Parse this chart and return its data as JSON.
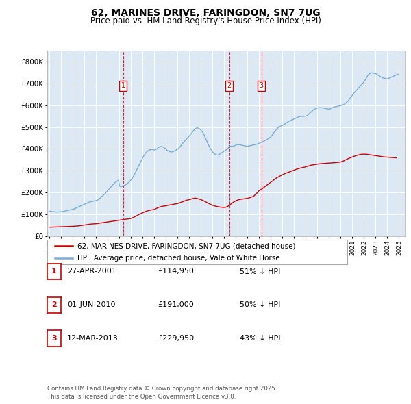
{
  "title": "62, MARINES DRIVE, FARINGDON, SN7 7UG",
  "subtitle": "Price paid vs. HM Land Registry's House Price Index (HPI)",
  "ylim": [
    0,
    850000
  ],
  "yticks": [
    0,
    100000,
    200000,
    300000,
    400000,
    500000,
    600000,
    700000,
    800000
  ],
  "ytick_labels": [
    "£0",
    "£100K",
    "£200K",
    "£300K",
    "£400K",
    "£500K",
    "£600K",
    "£700K",
    "£800K"
  ],
  "bg_color": "#dce9f5",
  "grid_color": "#ffffff",
  "red_line_color": "#cc0000",
  "blue_line_color": "#7aadd4",
  "sale_markers": [
    {
      "date": 2001.32,
      "price": 114950,
      "label": "1"
    },
    {
      "date": 2010.42,
      "price": 191000,
      "label": "2"
    },
    {
      "date": 2013.19,
      "price": 229950,
      "label": "3"
    }
  ],
  "legend_line1": "62, MARINES DRIVE, FARINGDON, SN7 7UG (detached house)",
  "legend_line2": "HPI: Average price, detached house, Vale of White Horse",
  "table_rows": [
    {
      "num": "1",
      "date": "27-APR-2001",
      "price": "£114,950",
      "note": "51% ↓ HPI"
    },
    {
      "num": "2",
      "date": "01-JUN-2010",
      "price": "£191,000",
      "note": "50% ↓ HPI"
    },
    {
      "num": "3",
      "date": "12-MAR-2013",
      "price": "£229,950",
      "note": "43% ↓ HPI"
    }
  ],
  "footer": "Contains HM Land Registry data © Crown copyright and database right 2025.\nThis data is licensed under the Open Government Licence v3.0.",
  "hpi_data": {
    "years": [
      1995.0,
      1995.08,
      1995.17,
      1995.25,
      1995.33,
      1995.42,
      1995.5,
      1995.58,
      1995.67,
      1995.75,
      1995.83,
      1995.92,
      1996.0,
      1996.08,
      1996.17,
      1996.25,
      1996.33,
      1996.42,
      1996.5,
      1996.58,
      1996.67,
      1996.75,
      1996.83,
      1996.92,
      1997.0,
      1997.08,
      1997.17,
      1997.25,
      1997.33,
      1997.42,
      1997.5,
      1997.58,
      1997.67,
      1997.75,
      1997.83,
      1997.92,
      1998.0,
      1998.08,
      1998.17,
      1998.25,
      1998.33,
      1998.42,
      1998.5,
      1998.58,
      1998.67,
      1998.75,
      1998.83,
      1998.92,
      1999.0,
      1999.08,
      1999.17,
      1999.25,
      1999.33,
      1999.42,
      1999.5,
      1999.58,
      1999.67,
      1999.75,
      1999.83,
      1999.92,
      2000.0,
      2000.08,
      2000.17,
      2000.25,
      2000.33,
      2000.42,
      2000.5,
      2000.58,
      2000.67,
      2000.75,
      2000.83,
      2000.92,
      2001.0,
      2001.08,
      2001.17,
      2001.25,
      2001.33,
      2001.42,
      2001.5,
      2001.58,
      2001.67,
      2001.75,
      2001.83,
      2001.92,
      2002.0,
      2002.08,
      2002.17,
      2002.25,
      2002.33,
      2002.42,
      2002.5,
      2002.58,
      2002.67,
      2002.75,
      2002.83,
      2002.92,
      2003.0,
      2003.08,
      2003.17,
      2003.25,
      2003.33,
      2003.42,
      2003.5,
      2003.58,
      2003.67,
      2003.75,
      2003.83,
      2003.92,
      2004.0,
      2004.08,
      2004.17,
      2004.25,
      2004.33,
      2004.42,
      2004.5,
      2004.58,
      2004.67,
      2004.75,
      2004.83,
      2004.92,
      2005.0,
      2005.08,
      2005.17,
      2005.25,
      2005.33,
      2005.42,
      2005.5,
      2005.58,
      2005.67,
      2005.75,
      2005.83,
      2005.92,
      2006.0,
      2006.08,
      2006.17,
      2006.25,
      2006.33,
      2006.42,
      2006.5,
      2006.58,
      2006.67,
      2006.75,
      2006.83,
      2006.92,
      2007.0,
      2007.08,
      2007.17,
      2007.25,
      2007.33,
      2007.42,
      2007.5,
      2007.58,
      2007.67,
      2007.75,
      2007.83,
      2007.92,
      2008.0,
      2008.08,
      2008.17,
      2008.25,
      2008.33,
      2008.42,
      2008.5,
      2008.58,
      2008.67,
      2008.75,
      2008.83,
      2008.92,
      2009.0,
      2009.08,
      2009.17,
      2009.25,
      2009.33,
      2009.42,
      2009.5,
      2009.58,
      2009.67,
      2009.75,
      2009.83,
      2009.92,
      2010.0,
      2010.08,
      2010.17,
      2010.25,
      2010.33,
      2010.42,
      2010.5,
      2010.58,
      2010.67,
      2010.75,
      2010.83,
      2010.92,
      2011.0,
      2011.08,
      2011.17,
      2011.25,
      2011.33,
      2011.42,
      2011.5,
      2011.58,
      2011.67,
      2011.75,
      2011.83,
      2011.92,
      2012.0,
      2012.08,
      2012.17,
      2012.25,
      2012.33,
      2012.42,
      2012.5,
      2012.58,
      2012.67,
      2012.75,
      2012.83,
      2012.92,
      2013.0,
      2013.08,
      2013.17,
      2013.25,
      2013.33,
      2013.42,
      2013.5,
      2013.58,
      2013.67,
      2013.75,
      2013.83,
      2013.92,
      2014.0,
      2014.08,
      2014.17,
      2014.25,
      2014.33,
      2014.42,
      2014.5,
      2014.58,
      2014.67,
      2014.75,
      2014.83,
      2014.92,
      2015.0,
      2015.08,
      2015.17,
      2015.25,
      2015.33,
      2015.42,
      2015.5,
      2015.58,
      2015.67,
      2015.75,
      2015.83,
      2015.92,
      2016.0,
      2016.08,
      2016.17,
      2016.25,
      2016.33,
      2016.42,
      2016.5,
      2016.58,
      2016.67,
      2016.75,
      2016.83,
      2016.92,
      2017.0,
      2017.08,
      2017.17,
      2017.25,
      2017.33,
      2017.42,
      2017.5,
      2017.58,
      2017.67,
      2017.75,
      2017.83,
      2017.92,
      2018.0,
      2018.08,
      2018.17,
      2018.25,
      2018.33,
      2018.42,
      2018.5,
      2018.58,
      2018.67,
      2018.75,
      2018.83,
      2018.92,
      2019.0,
      2019.08,
      2019.17,
      2019.25,
      2019.33,
      2019.42,
      2019.5,
      2019.58,
      2019.67,
      2019.75,
      2019.83,
      2019.92,
      2020.0,
      2020.08,
      2020.17,
      2020.25,
      2020.33,
      2020.42,
      2020.5,
      2020.58,
      2020.67,
      2020.75,
      2020.83,
      2020.92,
      2021.0,
      2021.08,
      2021.17,
      2021.25,
      2021.33,
      2021.42,
      2021.5,
      2021.58,
      2021.67,
      2021.75,
      2021.83,
      2021.92,
      2022.0,
      2022.08,
      2022.17,
      2022.25,
      2022.33,
      2022.42,
      2022.5,
      2022.58,
      2022.67,
      2022.75,
      2022.83,
      2022.92,
      2023.0,
      2023.08,
      2023.17,
      2023.25,
      2023.33,
      2023.42,
      2023.5,
      2023.58,
      2023.67,
      2023.75,
      2023.83,
      2023.92,
      2024.0,
      2024.08,
      2024.17,
      2024.25,
      2024.33,
      2024.42,
      2024.5,
      2024.58,
      2024.67,
      2024.75,
      2024.83,
      2024.92
    ],
    "hpi_values": [
      115000,
      114000,
      113500,
      113000,
      112500,
      112000,
      111500,
      111000,
      111000,
      111500,
      112000,
      112500,
      113000,
      113500,
      114000,
      115000,
      116000,
      117000,
      118000,
      119000,
      120000,
      121000,
      122000,
      123000,
      124000,
      125000,
      127000,
      129000,
      131000,
      133000,
      135000,
      137000,
      139000,
      141000,
      143000,
      145000,
      147000,
      149000,
      151000,
      153000,
      155000,
      157000,
      158000,
      159000,
      160000,
      161000,
      162000,
      163000,
      164000,
      165000,
      168000,
      171000,
      175000,
      179000,
      183000,
      187000,
      191000,
      195000,
      200000,
      205000,
      210000,
      215000,
      220000,
      225000,
      230000,
      235000,
      240000,
      245000,
      248000,
      251000,
      254000,
      257000,
      230000,
      228000,
      228000,
      229000,
      231000,
      233000,
      235000,
      238000,
      241000,
      245000,
      249000,
      254000,
      259000,
      265000,
      272000,
      280000,
      288000,
      297000,
      306000,
      315000,
      324000,
      333000,
      342000,
      351000,
      360000,
      368000,
      375000,
      381000,
      386000,
      390000,
      393000,
      395000,
      396000,
      397000,
      397000,
      396000,
      395000,
      396000,
      398000,
      402000,
      406000,
      408000,
      410000,
      411000,
      410000,
      408000,
      405000,
      402000,
      398000,
      394000,
      391000,
      389000,
      387000,
      386000,
      386000,
      387000,
      389000,
      391000,
      393000,
      396000,
      399000,
      403000,
      408000,
      413000,
      419000,
      425000,
      430000,
      435000,
      440000,
      445000,
      450000,
      455000,
      460000,
      465000,
      470000,
      476000,
      482000,
      488000,
      492000,
      495000,
      496000,
      495000,
      493000,
      490000,
      486000,
      481000,
      474000,
      465000,
      455000,
      445000,
      435000,
      425000,
      416000,
      407000,
      399000,
      392000,
      386000,
      381000,
      377000,
      374000,
      372000,
      372000,
      373000,
      375000,
      378000,
      381000,
      384000,
      387000,
      390000,
      393000,
      396000,
      400000,
      404000,
      408000,
      411000,
      412000,
      412000,
      412000,
      413000,
      415000,
      418000,
      419000,
      419000,
      419000,
      419000,
      418000,
      417000,
      416000,
      415000,
      414000,
      413000,
      412000,
      412000,
      413000,
      414000,
      415000,
      416000,
      417000,
      418000,
      419000,
      420000,
      421000,
      422000,
      424000,
      426000,
      428000,
      430000,
      432000,
      434000,
      436000,
      438000,
      440000,
      443000,
      446000,
      449000,
      452000,
      456000,
      461000,
      467000,
      473000,
      479000,
      485000,
      490000,
      495000,
      499000,
      502000,
      504000,
      506000,
      508000,
      510000,
      513000,
      516000,
      519000,
      522000,
      525000,
      527000,
      529000,
      531000,
      533000,
      535000,
      537000,
      539000,
      541000,
      543000,
      545000,
      547000,
      548000,
      549000,
      549000,
      549000,
      549000,
      549000,
      550000,
      552000,
      555000,
      559000,
      563000,
      567000,
      571000,
      575000,
      579000,
      582000,
      584000,
      586000,
      587000,
      588000,
      588000,
      588000,
      588000,
      588000,
      587000,
      586000,
      585000,
      584000,
      583000,
      582000,
      582000,
      583000,
      585000,
      587000,
      589000,
      591000,
      592000,
      593000,
      594000,
      595000,
      596000,
      597000,
      598000,
      599000,
      601000,
      603000,
      606000,
      609000,
      613000,
      617000,
      622000,
      628000,
      634000,
      640000,
      646000,
      652000,
      657000,
      662000,
      667000,
      672000,
      677000,
      682000,
      687000,
      692000,
      697000,
      702000,
      707000,
      714000,
      722000,
      730000,
      737000,
      742000,
      745000,
      747000,
      748000,
      747000,
      746000,
      745000,
      744000,
      742000,
      739000,
      736000,
      733000,
      730000,
      728000,
      726000,
      724000,
      723000,
      722000,
      721000,
      721000,
      722000,
      724000,
      726000,
      728000,
      730000,
      732000,
      734000,
      736000,
      738000,
      740000,
      742000
    ]
  },
  "red_data": {
    "years": [
      1995.0,
      1995.25,
      1995.5,
      1995.75,
      1996.0,
      1996.25,
      1996.5,
      1996.75,
      1997.0,
      1997.25,
      1997.5,
      1997.75,
      1998.0,
      1998.25,
      1998.5,
      1998.75,
      1999.0,
      1999.25,
      1999.5,
      1999.75,
      2000.0,
      2000.25,
      2000.5,
      2000.75,
      2001.0,
      2001.25,
      2001.5,
      2001.75,
      2002.0,
      2002.25,
      2002.5,
      2002.75,
      2003.0,
      2003.25,
      2003.5,
      2003.75,
      2004.0,
      2004.25,
      2004.5,
      2004.75,
      2005.0,
      2005.25,
      2005.5,
      2005.75,
      2006.0,
      2006.25,
      2006.5,
      2006.75,
      2007.0,
      2007.25,
      2007.5,
      2007.75,
      2008.0,
      2008.25,
      2008.5,
      2008.75,
      2009.0,
      2009.25,
      2009.5,
      2009.75,
      2010.0,
      2010.25,
      2010.5,
      2010.75,
      2011.0,
      2011.25,
      2011.5,
      2011.75,
      2012.0,
      2012.25,
      2012.5,
      2012.75,
      2013.0,
      2013.25,
      2013.5,
      2013.75,
      2014.0,
      2014.25,
      2014.5,
      2014.75,
      2015.0,
      2015.25,
      2015.5,
      2015.75,
      2016.0,
      2016.25,
      2016.5,
      2016.75,
      2017.0,
      2017.25,
      2017.5,
      2017.75,
      2018.0,
      2018.25,
      2018.5,
      2018.75,
      2019.0,
      2019.25,
      2019.5,
      2019.75,
      2020.0,
      2020.25,
      2020.5,
      2020.75,
      2021.0,
      2021.25,
      2021.5,
      2021.75,
      2022.0,
      2022.25,
      2022.5,
      2022.75,
      2023.0,
      2023.25,
      2023.5,
      2023.75,
      2024.0,
      2024.25,
      2024.5,
      2024.75
    ],
    "values": [
      42000,
      42500,
      43000,
      43500,
      44000,
      44500,
      45000,
      45500,
      46000,
      47000,
      48000,
      50000,
      52000,
      54000,
      56000,
      57000,
      58000,
      60000,
      62000,
      64000,
      66000,
      68000,
      70000,
      72000,
      74000,
      76000,
      78000,
      80000,
      82000,
      88000,
      95000,
      102000,
      108000,
      114000,
      118000,
      121000,
      123000,
      130000,
      135000,
      138000,
      140000,
      143000,
      145000,
      148000,
      150000,
      155000,
      160000,
      165000,
      168000,
      172000,
      175000,
      172000,
      168000,
      162000,
      155000,
      148000,
      142000,
      138000,
      135000,
      133000,
      132000,
      135000,
      145000,
      155000,
      163000,
      168000,
      170000,
      172000,
      174000,
      178000,
      183000,
      195000,
      210000,
      218000,
      228000,
      238000,
      248000,
      258000,
      268000,
      275000,
      282000,
      288000,
      293000,
      298000,
      303000,
      308000,
      312000,
      315000,
      318000,
      322000,
      326000,
      328000,
      330000,
      332000,
      333000,
      334000,
      335000,
      336000,
      337000,
      338000,
      340000,
      345000,
      352000,
      358000,
      363000,
      368000,
      372000,
      375000,
      376000,
      375000,
      373000,
      371000,
      369000,
      367000,
      365000,
      363000,
      362000,
      361000,
      360000,
      359000
    ]
  },
  "x_tick_years": [
    1995,
    1996,
    1997,
    1998,
    1999,
    2000,
    2001,
    2002,
    2003,
    2004,
    2005,
    2006,
    2007,
    2008,
    2009,
    2010,
    2011,
    2012,
    2013,
    2014,
    2015,
    2016,
    2017,
    2018,
    2019,
    2020,
    2021,
    2022,
    2023,
    2024,
    2025
  ],
  "xlim": [
    1994.8,
    2025.5
  ]
}
